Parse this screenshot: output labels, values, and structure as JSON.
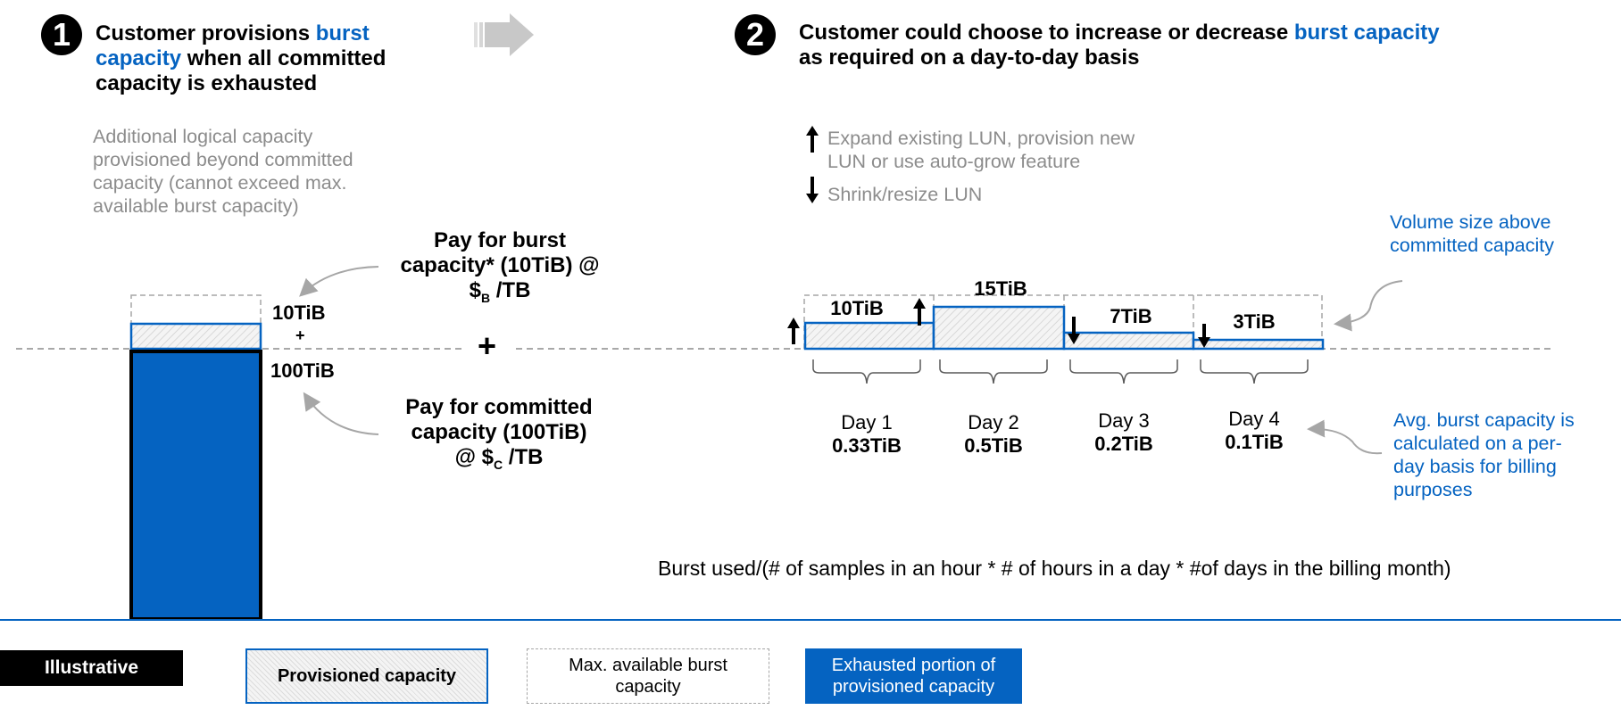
{
  "step1": {
    "number": "1",
    "title_pre": "Customer provisions ",
    "title_hl": "burst capacity",
    "title_post": " when all committed capacity is exhausted",
    "description": "Additional logical capacity provisioned beyond committed capacity (cannot exceed max. available burst capacity)",
    "burst_label": "10TiB",
    "plus_small": "+",
    "committed_label": "100TiB",
    "pay_burst_l1": "Pay for burst",
    "pay_burst_l2": "capacity* (10TiB) @",
    "pay_burst_l3a": "$",
    "pay_burst_l3sub": "B",
    "pay_burst_l3b": " /TB",
    "plus_big": "+",
    "pay_committed_l1": "Pay for committed",
    "pay_committed_l2": "capacity (100TiB)",
    "pay_committed_l3a": "@ $",
    "pay_committed_l3sub": "C",
    "pay_committed_l3b": " /TB"
  },
  "step2": {
    "number": "2",
    "title_pre": "Customer could choose to increase or decrease ",
    "title_hl": "burst capacity",
    "title_post": " as required on a day-to-day basis",
    "bullet_up": "Expand existing LUN, provision new LUN or use auto-grow feature",
    "bullet_down": "Shrink/resize LUN",
    "volume_note": "Volume size above committed capacity",
    "avg_note": "Avg. burst capacity is calculated on a per-day basis for billing purposes",
    "formula": "Burst used/(# of samples in an hour * # of hours in a day * #of days in the billing month)"
  },
  "days": [
    {
      "name": "Day 1",
      "avg": "0.33TiB",
      "burst": "10TiB"
    },
    {
      "name": "Day 2",
      "avg": "0.5TiB",
      "burst": "15TiB"
    },
    {
      "name": "Day 3",
      "avg": "0.2TiB",
      "burst": "7TiB"
    },
    {
      "name": "Day 4",
      "avg": "0.1TiB",
      "burst": "3TiB"
    }
  ],
  "legend": {
    "illustrative": "Illustrative",
    "provisioned": "Provisioned capacity",
    "max_burst": "Max. available burst capacity",
    "exhausted": "Exhausted portion of provisioned capacity"
  },
  "colors": {
    "accent_blue": "#0563c1",
    "gray_text": "#8c8c8c",
    "arrow_gray": "#c8c8c8"
  }
}
